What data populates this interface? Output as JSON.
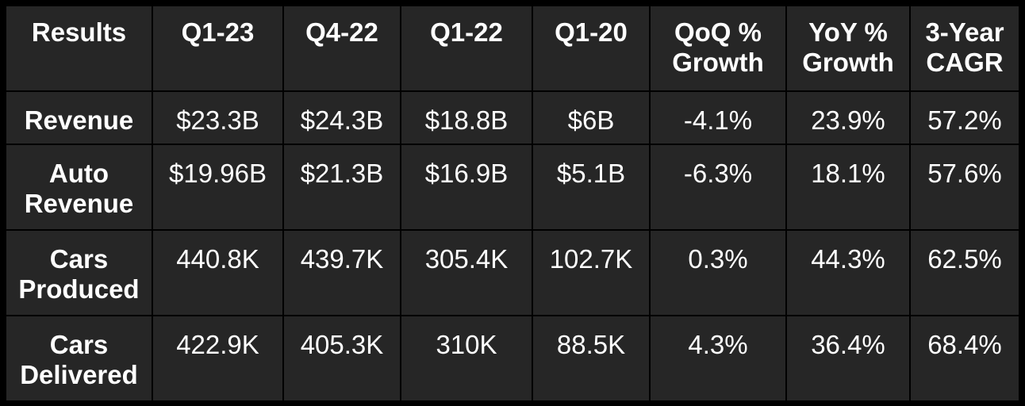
{
  "chart_data": {
    "type": "table",
    "columns": [
      [
        "Results"
      ],
      [
        "Q1-23"
      ],
      [
        "Q4-22"
      ],
      [
        "Q1-22"
      ],
      [
        "Q1-20"
      ],
      [
        "QoQ %",
        "Growth"
      ],
      [
        "YoY %",
        "Growth"
      ],
      [
        "3-Year",
        "CAGR"
      ]
    ],
    "rows": [
      {
        "label": [
          "Revenue"
        ],
        "cells": [
          "$23.3B",
          "$24.3B",
          "$18.8B",
          "$6B",
          "-4.1%",
          "23.9%",
          "57.2%"
        ]
      },
      {
        "label": [
          "Auto",
          "Revenue"
        ],
        "cells": [
          "$19.96B",
          "$21.3B",
          "$16.9B",
          "$5.1B",
          "-6.3%",
          "18.1%",
          "57.6%"
        ]
      },
      {
        "label": [
          "Cars",
          "Produced"
        ],
        "cells": [
          "440.8K",
          "439.7K",
          "305.4K",
          "102.7K",
          "0.3%",
          "44.3%",
          "62.5%"
        ]
      },
      {
        "label": [
          "Cars",
          "Delivered"
        ],
        "cells": [
          "422.9K",
          "405.3K",
          "310K",
          "88.5K",
          "4.3%",
          "36.4%",
          "68.4%"
        ]
      }
    ]
  },
  "colors": {
    "background": "#000000",
    "cell": "#262626",
    "text": "#ffffff",
    "grid": "#000000"
  }
}
